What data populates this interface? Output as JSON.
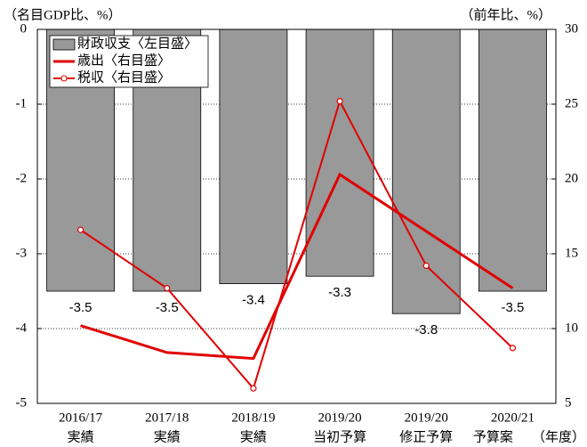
{
  "chart_data": {
    "type": "bar",
    "y_label": "（名目GDP比、%）",
    "y2_label": "（前年比、%）",
    "x_label": "（年度）",
    "categories": [
      [
        "2016/17",
        "実績"
      ],
      [
        "2017/18",
        "実績"
      ],
      [
        "2018/19",
        "実績"
      ],
      [
        "2019/20",
        "当初予算"
      ],
      [
        "2019/20",
        "修正予算"
      ],
      [
        "2020/21",
        "予算案"
      ]
    ],
    "series": [
      {
        "name": "財政収支〈左目盛〉",
        "type": "bar",
        "color": "#999999",
        "values": [
          -3.5,
          -3.5,
          -3.4,
          -3.3,
          -3.8,
          -3.5
        ]
      },
      {
        "name": "歳出〈右目盛〉",
        "type": "line",
        "axis": "y2",
        "color": "#e00000",
        "values": [
          10.2,
          8.4,
          8.0,
          20.3,
          16.5,
          12.7
        ]
      },
      {
        "name": "税収〈右目盛〉",
        "type": "line",
        "axis": "y2",
        "marker": "circle",
        "color": "#e00000",
        "values": [
          16.6,
          12.7,
          6.0,
          25.2,
          14.2,
          8.7
        ]
      }
    ],
    "ylim": [
      -5,
      0
    ],
    "yticks": [
      0,
      -1,
      -2,
      -3,
      -4,
      -5
    ],
    "y2lim": [
      5,
      30
    ],
    "y2ticks": [
      30,
      25,
      20,
      15,
      10,
      5
    ],
    "grid": true,
    "legend": "top-left"
  }
}
